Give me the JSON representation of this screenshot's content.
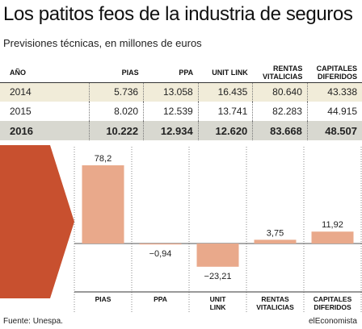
{
  "title": "Los patitos feos de la industria de seguros",
  "subtitle": "Previsiones técnicas, en millones de euros",
  "table": {
    "headers": [
      "AÑO",
      "PIAS",
      "PPA",
      "UNIT LINK",
      "RENTAS VITALICIAS",
      "CAPITALES DIFERIDOS"
    ],
    "rows": [
      [
        "2014",
        "5.736",
        "13.058",
        "16.435",
        "80.640",
        "43.338"
      ],
      [
        "2015",
        "8.020",
        "12.539",
        "13.741",
        "82.283",
        "44.915"
      ],
      [
        "2016",
        "10.222",
        "12.934",
        "12.620",
        "83.668",
        "48.507"
      ]
    ]
  },
  "chart_data": {
    "type": "bar",
    "categories": [
      "PIAS",
      "PPA",
      "UNIT LINK",
      "RENTAS VITALICIAS",
      "CAPITALES DIFERIDOS"
    ],
    "values": [
      78.2,
      -0.94,
      -23.21,
      3.75,
      11.92
    ],
    "value_labels": [
      "78,2",
      "−0,94",
      "−23,21",
      "3,75",
      "11,92"
    ],
    "bar_color": "#e9a98b",
    "arrow_color": "#c8502f"
  },
  "footer": {
    "source": "Fuente: Unespa.",
    "brand": "elEconomista"
  }
}
